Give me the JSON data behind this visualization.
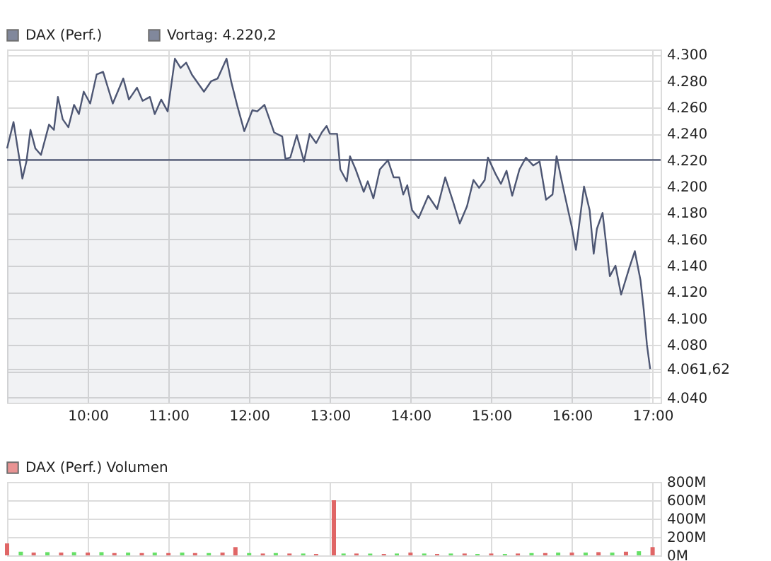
{
  "chart_data": [
    {
      "type": "area",
      "x": [
        9.0,
        9.08,
        9.15,
        9.19,
        9.24,
        9.29,
        9.35,
        9.42,
        9.52,
        9.58,
        9.63,
        9.69,
        9.76,
        9.83,
        9.89,
        9.95,
        10.03,
        10.11,
        10.19,
        10.31,
        10.44,
        10.51,
        10.61,
        10.68,
        10.77,
        10.83,
        10.91,
        10.99,
        11.08,
        11.15,
        11.22,
        11.29,
        11.44,
        11.53,
        11.61,
        11.72,
        11.78,
        11.85,
        11.94,
        12.04,
        12.1,
        12.19,
        12.31,
        12.41,
        12.45,
        12.51,
        12.59,
        12.68,
        12.75,
        12.83,
        12.9,
        12.96,
        13.0,
        13.09,
        13.13,
        13.21,
        13.25,
        13.32,
        13.42,
        13.47,
        13.54,
        13.62,
        13.72,
        13.79,
        13.86,
        13.91,
        13.96,
        14.02,
        14.1,
        14.22,
        14.33,
        14.43,
        14.53,
        14.61,
        14.7,
        14.78,
        14.85,
        14.92,
        14.96,
        15.05,
        15.12,
        15.19,
        15.26,
        15.35,
        15.43,
        15.52,
        15.6,
        15.68,
        15.76,
        15.81,
        15.91,
        16.0,
        16.05,
        16.15,
        16.22,
        16.27,
        16.31,
        16.38,
        16.47,
        16.54,
        16.61,
        16.71,
        16.78,
        16.85,
        16.89,
        16.93,
        16.97
      ],
      "series": [
        {
          "name": "DAX (Perf.)",
          "color": "#4d5673",
          "values": [
            4229,
            4249,
            4222,
            4206,
            4219,
            4243,
            4229,
            4224,
            4247,
            4243,
            4268,
            4251,
            4245,
            4262,
            4255,
            4272,
            4263,
            4285,
            4287,
            4263,
            4282,
            4266,
            4275,
            4265,
            4268,
            4255,
            4266,
            4257,
            4297,
            4290,
            4294,
            4285,
            4272,
            4280,
            4282,
            4297,
            4279,
            4262,
            4242,
            4258,
            4257,
            4262,
            4241,
            4238,
            4221,
            4222,
            4239,
            4219,
            4240,
            4233,
            4241,
            4246,
            4240,
            4240,
            4213,
            4204,
            4223,
            4213,
            4196,
            4204,
            4191,
            4213,
            4220,
            4207,
            4207,
            4194,
            4201,
            4182,
            4176,
            4193,
            4183,
            4207,
            4188,
            4172,
            4185,
            4205,
            4199,
            4205,
            4222,
            4210,
            4202,
            4212,
            4193,
            4213,
            4222,
            4216,
            4219,
            4190,
            4194,
            4223,
            4194,
            4169,
            4152,
            4200,
            4182,
            4149,
            4168,
            4180,
            4132,
            4140,
            4118,
            4138,
            4151,
            4129,
            4107,
            4080,
            4061.62
          ]
        }
      ],
      "xlim": [
        9.0,
        17.1
      ],
      "xticks": [
        {
          "value": 10,
          "label": "10:00"
        },
        {
          "value": 11,
          "label": "11:00"
        },
        {
          "value": 12,
          "label": "12:00"
        },
        {
          "value": 13,
          "label": "13:00"
        },
        {
          "value": 14,
          "label": "14:00"
        },
        {
          "value": 15,
          "label": "15:00"
        },
        {
          "value": 16,
          "label": "16:00"
        },
        {
          "value": 17,
          "label": "17:00"
        }
      ],
      "ylim": [
        4036,
        4304
      ],
      "yticks": [
        {
          "value": 4040,
          "label": "4.040"
        },
        {
          "value": 4060,
          "label": null
        },
        {
          "value": 4061.62,
          "label": "4.061,62"
        },
        {
          "value": 4080,
          "label": "4.080"
        },
        {
          "value": 4100,
          "label": "4.100"
        },
        {
          "value": 4120,
          "label": "4.120"
        },
        {
          "value": 4140,
          "label": "4.140"
        },
        {
          "value": 4160,
          "label": "4.160"
        },
        {
          "value": 4180,
          "label": "4.180"
        },
        {
          "value": 4200,
          "label": "4.200"
        },
        {
          "value": 4220,
          "label": "4.220"
        },
        {
          "value": 4240,
          "label": "4.240"
        },
        {
          "value": 4260,
          "label": "4.260"
        },
        {
          "value": 4280,
          "label": "4.280"
        },
        {
          "value": 4300,
          "label": "4.300"
        }
      ],
      "ref_lines": [
        {
          "axis": "y",
          "value": 4220.2,
          "label": "Vortag: 4.220,2",
          "color": "#4d5673"
        }
      ],
      "grid": true,
      "legend": "top left"
    },
    {
      "type": "bar",
      "x": [
        9.0,
        9.17,
        9.33,
        9.5,
        9.67,
        9.83,
        10.0,
        10.17,
        10.33,
        10.5,
        10.67,
        10.83,
        11.0,
        11.17,
        11.33,
        11.5,
        11.67,
        11.83,
        12.0,
        12.17,
        12.33,
        12.5,
        12.67,
        12.83,
        13.05,
        13.17,
        13.33,
        13.5,
        13.67,
        13.83,
        14.0,
        14.17,
        14.33,
        14.5,
        14.67,
        14.83,
        15.0,
        15.17,
        15.33,
        15.5,
        15.67,
        15.83,
        16.0,
        16.17,
        16.33,
        16.5,
        16.67,
        16.83,
        17.0
      ],
      "series": [
        {
          "name": "DAX (Perf.) Volumen",
          "values": [
            130,
            40,
            30,
            35,
            30,
            35,
            30,
            35,
            25,
            30,
            25,
            30,
            25,
            30,
            25,
            25,
            30,
            90,
            25,
            20,
            25,
            20,
            20,
            15,
            600,
            20,
            20,
            20,
            15,
            20,
            30,
            20,
            15,
            20,
            20,
            15,
            20,
            15,
            20,
            25,
            25,
            30,
            30,
            30,
            35,
            30,
            40,
            45,
            90
          ],
          "colors": [
            "#e06666",
            "#66e066",
            "#e06666",
            "#66e066",
            "#e06666",
            "#66e066",
            "#e06666",
            "#66e066",
            "#e06666",
            "#66e066",
            "#e06666",
            "#66e066",
            "#e06666",
            "#66e066",
            "#e06666",
            "#66e066",
            "#e06666",
            "#e06666",
            "#66e066",
            "#e06666",
            "#66e066",
            "#e06666",
            "#66e066",
            "#e06666",
            "#e06666",
            "#66e066",
            "#e06666",
            "#66e066",
            "#e06666",
            "#66e066",
            "#e06666",
            "#66e066",
            "#e06666",
            "#66e066",
            "#e06666",
            "#66e066",
            "#e06666",
            "#66e066",
            "#e06666",
            "#66e066",
            "#e06666",
            "#66e066",
            "#e06666",
            "#66e066",
            "#e06666",
            "#66e066",
            "#e06666",
            "#66e066",
            "#e06666"
          ]
        }
      ],
      "xlim": [
        9.0,
        17.1
      ],
      "xticks": [
        10,
        11,
        12,
        13,
        14,
        15,
        16,
        17
      ],
      "ylim": [
        0,
        800
      ],
      "yticks": [
        {
          "value": 0,
          "label": "0M"
        },
        {
          "value": 200,
          "label": "200M"
        },
        {
          "value": 400,
          "label": "400M"
        },
        {
          "value": 600,
          "label": "600M"
        },
        {
          "value": 800,
          "label": "800M"
        }
      ],
      "tick_labels": "y",
      "grid": true,
      "legend": "top left"
    }
  ]
}
